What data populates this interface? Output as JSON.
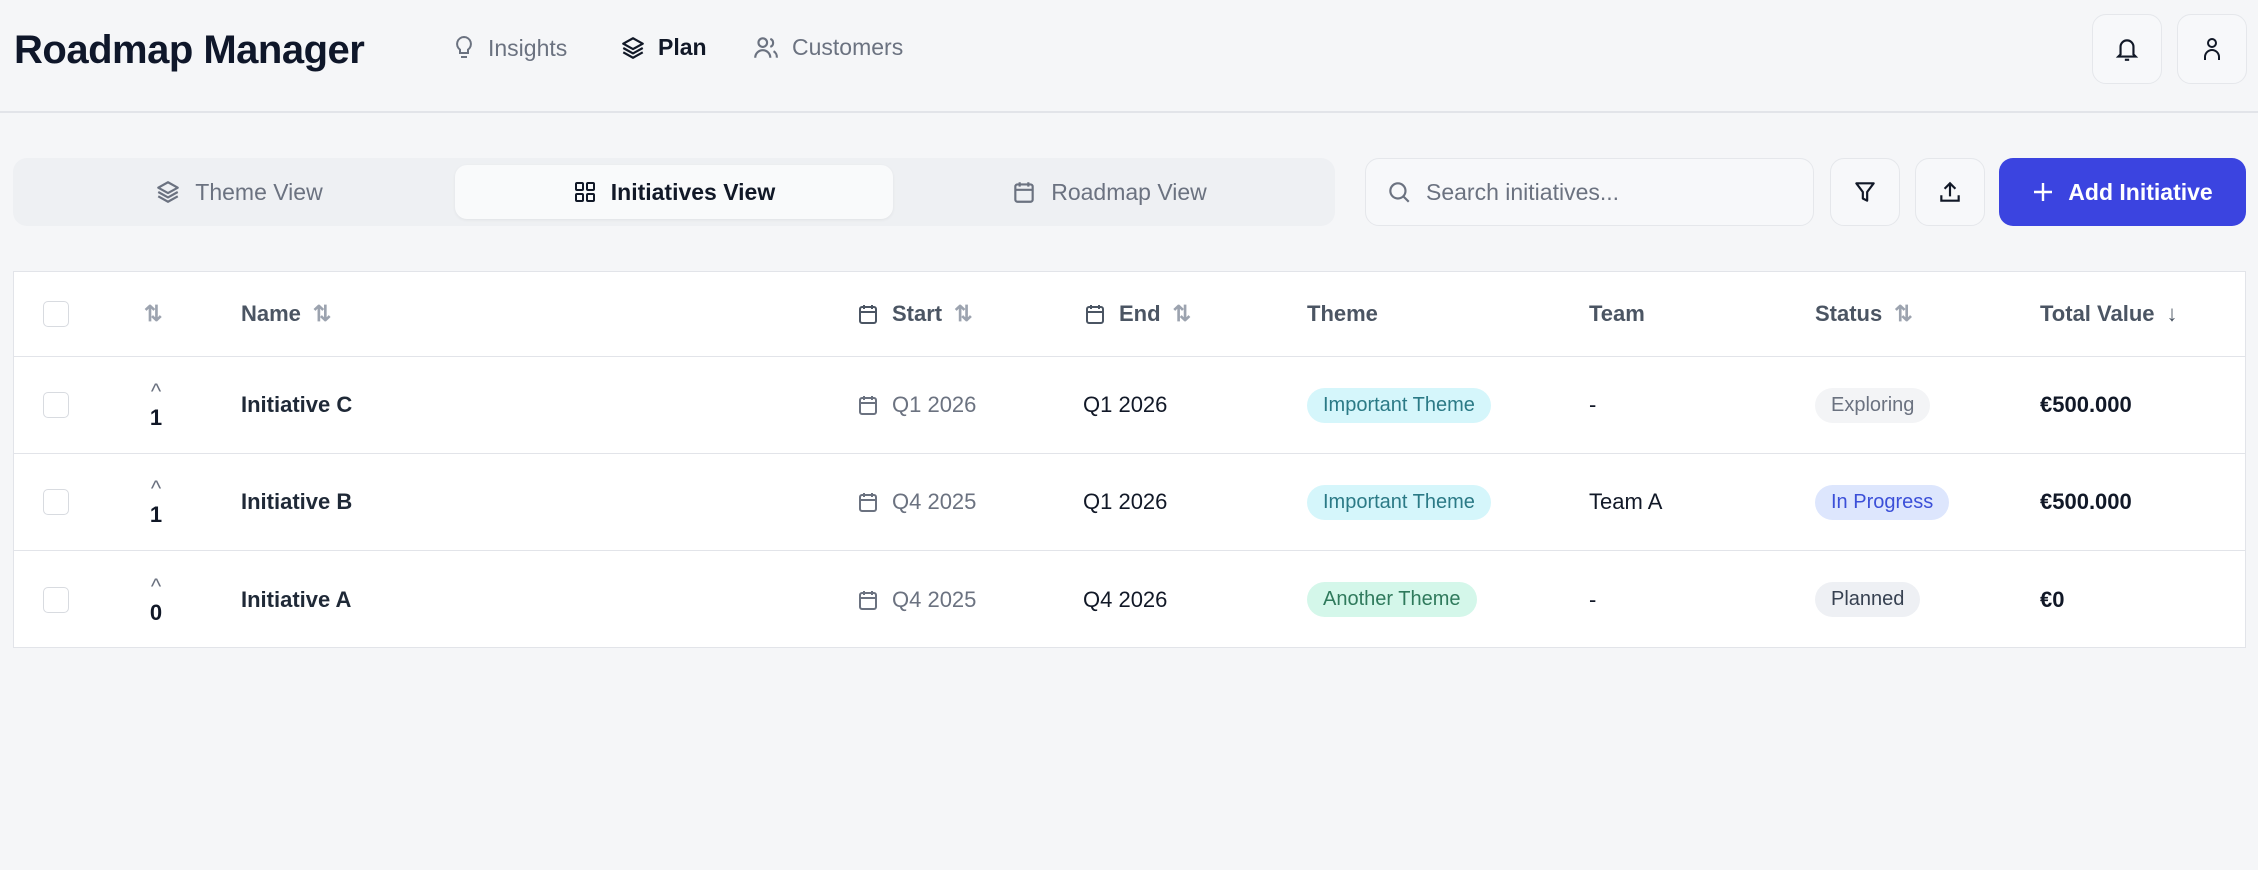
{
  "app": {
    "title": "Roadmap Manager"
  },
  "nav": [
    {
      "label": "Insights",
      "icon": "lightbulb-icon",
      "active": false
    },
    {
      "label": "Plan",
      "icon": "layers-icon",
      "active": true
    },
    {
      "label": "Customers",
      "icon": "users-icon",
      "active": false
    }
  ],
  "views": [
    {
      "label": "Theme View",
      "icon": "layers-icon",
      "active": false
    },
    {
      "label": "Initiatives View",
      "icon": "grid-icon",
      "active": true
    },
    {
      "label": "Roadmap View",
      "icon": "calendar-icon",
      "active": false
    }
  ],
  "toolbar": {
    "search_placeholder": "Search initiatives...",
    "search_value": "",
    "add_label": "Add Initiative"
  },
  "colors": {
    "accent": "#3b44e0",
    "theme_important_bg": "#d5f6fb",
    "theme_important_fg": "#2b7a86",
    "theme_another_bg": "#d4f7ea",
    "theme_another_fg": "#2f7a5c",
    "status_progress_bg": "#dde6fd",
    "status_progress_fg": "#3b4fd8"
  },
  "table": {
    "columns": {
      "name": "Name",
      "start": "Start",
      "end": "End",
      "theme": "Theme",
      "team": "Team",
      "status": "Status",
      "total": "Total Value"
    },
    "sort": {
      "total": "descending"
    },
    "rows": [
      {
        "votes": "1",
        "name": "Initiative C",
        "start": "Q1 2026",
        "end": "Q1 2026",
        "theme": "Important Theme",
        "theme_kind": "important",
        "team": "-",
        "status": "Exploring",
        "status_kind": "exploring",
        "total": "€500.000"
      },
      {
        "votes": "1",
        "name": "Initiative B",
        "start": "Q4 2025",
        "end": "Q1 2026",
        "theme": "Important Theme",
        "theme_kind": "important",
        "team": "Team A",
        "status": "In Progress",
        "status_kind": "progress",
        "total": "€500.000"
      },
      {
        "votes": "0",
        "name": "Initiative A",
        "start": "Q4 2025",
        "end": "Q4 2026",
        "theme": "Another Theme",
        "theme_kind": "another",
        "team": "-",
        "status": "Planned",
        "status_kind": "planned",
        "total": "€0"
      }
    ]
  }
}
